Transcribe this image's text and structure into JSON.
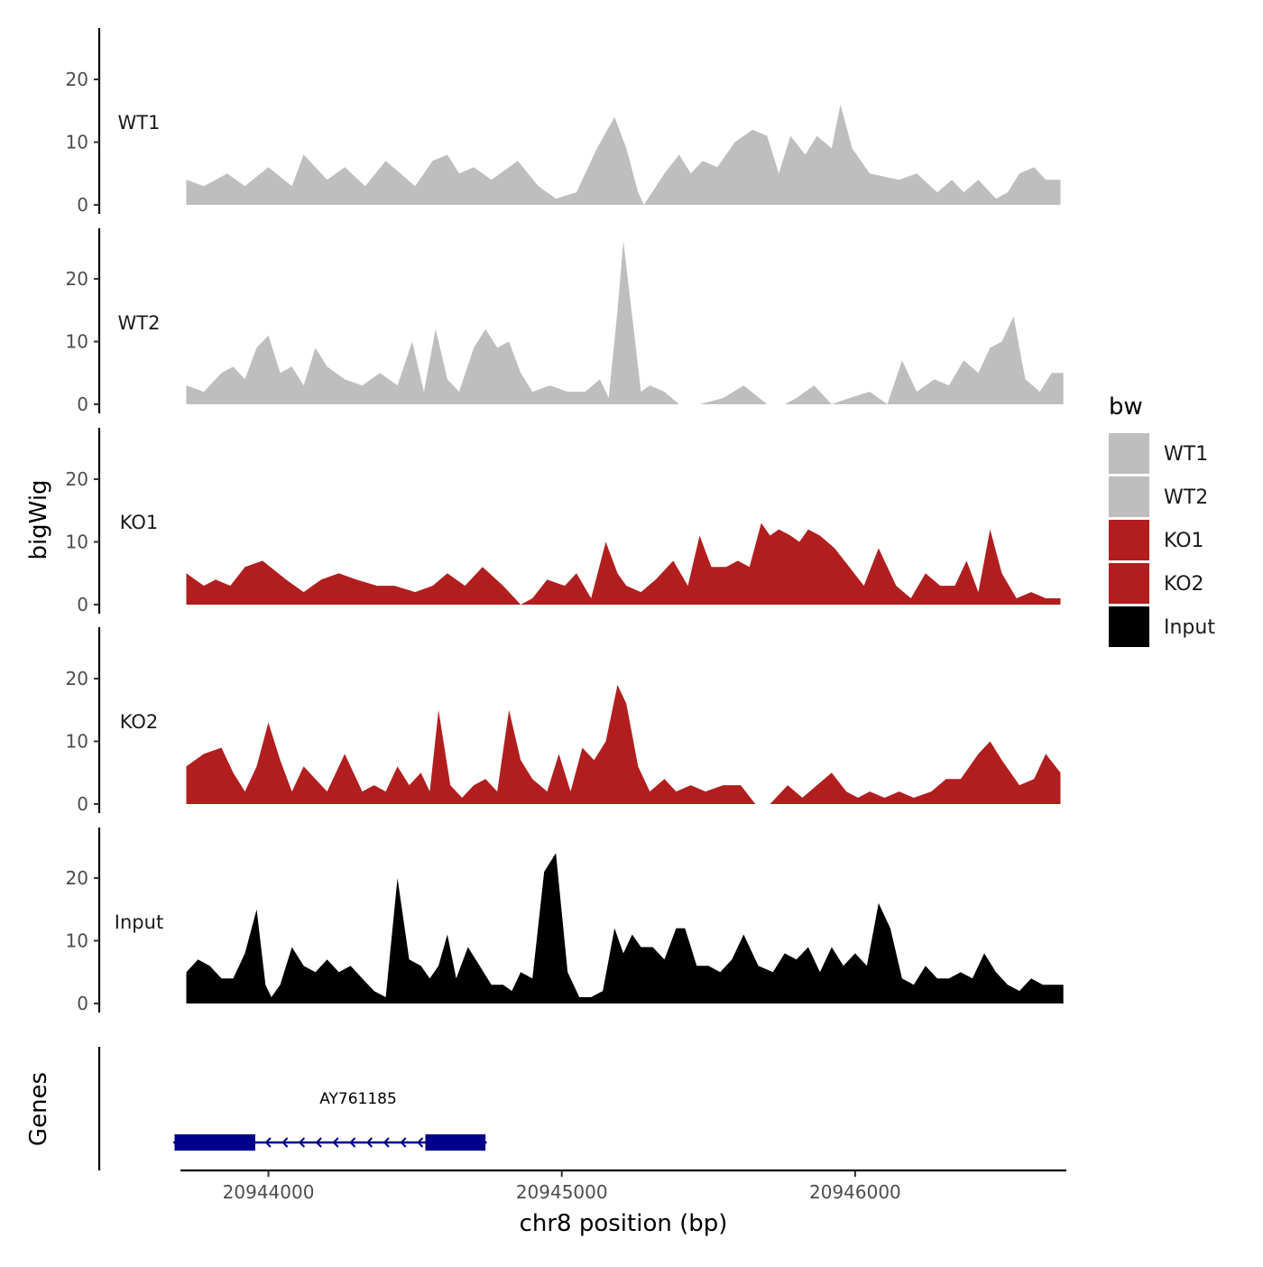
{
  "chart_data": {
    "type": "area",
    "ylabel": "bigWig",
    "xlabel": "chr8 position (bp)",
    "genes_label": "Genes",
    "xlim": [
      20943700,
      20946720
    ],
    "x_ticks": [
      20944000,
      20945000,
      20946000
    ],
    "x_tick_labels": [
      "20944000",
      "20945000",
      "20946000"
    ],
    "ylim": [
      0,
      28
    ],
    "y_ticks": [
      0,
      10,
      20
    ],
    "y_tick_labels": [
      "0",
      "10",
      "20"
    ],
    "legend": {
      "title": "bw",
      "entries": [
        {
          "label": "WT1",
          "color": "#bebebe"
        },
        {
          "label": "WT2",
          "color": "#bebebe"
        },
        {
          "label": "KO1",
          "color": "#b21e1e"
        },
        {
          "label": "KO2",
          "color": "#b21e1e"
        },
        {
          "label": "Input",
          "color": "#000000"
        }
      ]
    },
    "tracks": [
      {
        "name": "WT1",
        "color": "#bebebe",
        "x": [
          20943720,
          20943780,
          20943860,
          20943920,
          20944000,
          20944080,
          20944120,
          20944200,
          20944260,
          20944330,
          20944400,
          20944450,
          20944500,
          20944560,
          20944610,
          20944650,
          20944700,
          20944760,
          20944850,
          20944920,
          20944980,
          20945050,
          20945120,
          20945180,
          20945220,
          20945260,
          20945280,
          20945350,
          20945400,
          20945440,
          20945480,
          20945530,
          20945590,
          20945650,
          20945700,
          20945740,
          20945780,
          20945830,
          20945870,
          20945920,
          20945950,
          20945990,
          20946050,
          20946150,
          20946210,
          20946280,
          20946330,
          20946370,
          20946420,
          20946480,
          20946520,
          20946560,
          20946610,
          20946650,
          20946700
        ],
        "y": [
          4,
          3,
          5,
          3,
          6,
          3,
          8,
          4,
          6,
          3,
          7,
          5,
          3,
          7,
          8,
          5,
          6,
          4,
          7,
          3,
          1,
          2,
          9,
          14,
          9,
          2,
          0,
          5,
          8,
          5,
          7,
          6,
          10,
          12,
          11,
          5,
          11,
          8,
          11,
          9,
          16,
          9,
          5,
          4,
          5,
          2,
          4,
          2,
          4,
          1,
          2,
          5,
          6,
          4,
          4
        ]
      },
      {
        "name": "WT2",
        "color": "#bebebe",
        "x": [
          20943720,
          20943780,
          20943840,
          20943880,
          20943920,
          20943960,
          20944000,
          20944040,
          20944080,
          20944120,
          20944160,
          20944200,
          20944260,
          20944320,
          20944380,
          20944440,
          20944490,
          20944530,
          20944570,
          20944610,
          20944650,
          20944700,
          20944740,
          20944780,
          20944820,
          20944860,
          20944900,
          20944960,
          20945020,
          20945080,
          20945130,
          20945160,
          20945190,
          20945210,
          20945240,
          20945270,
          20945300,
          20945350,
          20945400,
          20945470,
          20945550,
          20945620,
          20945700,
          20945760,
          20945800,
          20945860,
          20945920,
          20945980,
          20946050,
          20946110,
          20946160,
          20946210,
          20946270,
          20946320,
          20946370,
          20946420,
          20946460,
          20946500,
          20946540,
          20946580,
          20946630,
          20946670,
          20946710
        ],
        "y": [
          3,
          2,
          5,
          6,
          4,
          9,
          11,
          5,
          6,
          3,
          9,
          6,
          4,
          3,
          5,
          3,
          10,
          2,
          12,
          4,
          2,
          9,
          12,
          9,
          10,
          5,
          2,
          3,
          2,
          2,
          4,
          1,
          15,
          26,
          14,
          2,
          3,
          2,
          0,
          0,
          1,
          3,
          0,
          0,
          1,
          3,
          0,
          1,
          2,
          0,
          7,
          2,
          4,
          3,
          7,
          5,
          9,
          10,
          14,
          4,
          2,
          5,
          5
        ]
      },
      {
        "name": "KO1",
        "color": "#b21e1e",
        "x": [
          20943720,
          20943750,
          20943780,
          20943820,
          20943870,
          20943920,
          20943980,
          20944060,
          20944120,
          20944180,
          20944240,
          20944300,
          20944370,
          20944430,
          20944500,
          20944560,
          20944610,
          20944670,
          20944730,
          20944800,
          20944860,
          20944900,
          20944950,
          20945010,
          20945050,
          20945100,
          20945150,
          20945190,
          20945220,
          20945270,
          20945320,
          20945380,
          20945430,
          20945470,
          20945510,
          20945560,
          20945600,
          20945640,
          20945680,
          20945710,
          20945740,
          20945780,
          20945810,
          20945840,
          20945880,
          20945930,
          20945980,
          20946030,
          20946080,
          20946140,
          20946190,
          20946240,
          20946290,
          20946340,
          20946380,
          20946420,
          20946460,
          20946500,
          20946550,
          20946600,
          20946650,
          20946700
        ],
        "y": [
          5,
          4,
          3,
          4,
          3,
          6,
          7,
          4,
          2,
          4,
          5,
          4,
          3,
          3,
          2,
          3,
          5,
          3,
          6,
          3,
          0,
          1,
          4,
          3,
          5,
          1,
          10,
          5,
          3,
          2,
          4,
          7,
          3,
          11,
          6,
          6,
          7,
          6,
          13,
          11,
          12,
          11,
          10,
          12,
          11,
          9,
          6,
          3,
          9,
          3,
          1,
          5,
          3,
          3,
          7,
          2,
          12,
          5,
          1,
          2,
          1,
          1
        ]
      },
      {
        "name": "KO2",
        "color": "#b21e1e",
        "x": [
          20943720,
          20943780,
          20943840,
          20943880,
          20943920,
          20943960,
          20944000,
          20944040,
          20944080,
          20944120,
          20944160,
          20944200,
          20944260,
          20944320,
          20944360,
          20944400,
          20944440,
          20944480,
          20944520,
          20944550,
          20944580,
          20944620,
          20944660,
          20944700,
          20944740,
          20944780,
          20944820,
          20944860,
          20944900,
          20944950,
          20944990,
          20945030,
          20945070,
          20945110,
          20945150,
          20945190,
          20945220,
          20945260,
          20945300,
          20945350,
          20945390,
          20945440,
          20945490,
          20945550,
          20945610,
          20945660,
          20945710,
          20945770,
          20945820,
          20945870,
          20945920,
          20945970,
          20946010,
          20946050,
          20946100,
          20946150,
          20946200,
          20946260,
          20946310,
          20946360,
          20946420,
          20946460,
          20946500,
          20946560,
          20946610,
          20946650,
          20946700
        ],
        "y": [
          6,
          8,
          9,
          5,
          2,
          6,
          13,
          7,
          2,
          6,
          4,
          2,
          8,
          2,
          3,
          2,
          6,
          3,
          5,
          2,
          15,
          3,
          1,
          3,
          4,
          2,
          15,
          7,
          4,
          2,
          8,
          2,
          9,
          7,
          10,
          19,
          16,
          6,
          2,
          4,
          2,
          3,
          2,
          3,
          3,
          0,
          0,
          3,
          1,
          3,
          5,
          2,
          1,
          2,
          1,
          2,
          1,
          2,
          4,
          4,
          8,
          10,
          7,
          3,
          4,
          8,
          5
        ]
      },
      {
        "name": "Input",
        "color": "#000000",
        "x": [
          20943720,
          20943760,
          20943800,
          20943840,
          20943880,
          20943920,
          20943960,
          20943990,
          20944010,
          20944040,
          20944080,
          20944120,
          20944160,
          20944200,
          20944240,
          20944280,
          20944320,
          20944360,
          20944400,
          20944440,
          20944480,
          20944520,
          20944550,
          20944580,
          20944610,
          20944640,
          20944680,
          20944720,
          20944760,
          20944800,
          20944830,
          20944860,
          20944900,
          20944940,
          20944980,
          20945020,
          20945060,
          20945100,
          20945140,
          20945180,
          20945210,
          20945240,
          20945270,
          20945310,
          20945350,
          20945390,
          20945420,
          20945460,
          20945500,
          20945540,
          20945580,
          20945620,
          20945670,
          20945720,
          20945760,
          20945800,
          20945840,
          20945880,
          20945920,
          20945960,
          20946000,
          20946040,
          20946080,
          20946120,
          20946160,
          20946200,
          20946240,
          20946280,
          20946320,
          20946360,
          20946400,
          20946440,
          20946480,
          20946520,
          20946560,
          20946600,
          20946640,
          20946680,
          20946710
        ],
        "y": [
          5,
          7,
          6,
          4,
          4,
          8,
          15,
          3,
          1,
          3,
          9,
          6,
          5,
          7,
          5,
          6,
          4,
          2,
          1,
          20,
          7,
          6,
          4,
          6,
          11,
          4,
          9,
          6,
          3,
          3,
          2,
          5,
          4,
          21,
          24,
          5,
          1,
          1,
          2,
          12,
          8,
          11,
          9,
          9,
          7,
          12,
          12,
          6,
          6,
          5,
          7,
          11,
          6,
          5,
          8,
          7,
          9,
          5,
          9,
          6,
          8,
          6,
          16,
          12,
          4,
          3,
          6,
          4,
          4,
          5,
          4,
          8,
          5,
          3,
          2,
          4,
          3,
          3,
          3
        ]
      }
    ],
    "genes": [
      {
        "name": "AY761185",
        "start": 20943680,
        "end": 20944740,
        "strand": "-",
        "exons": [
          [
            20943680,
            20943955
          ],
          [
            20944535,
            20944740
          ]
        ]
      }
    ]
  }
}
